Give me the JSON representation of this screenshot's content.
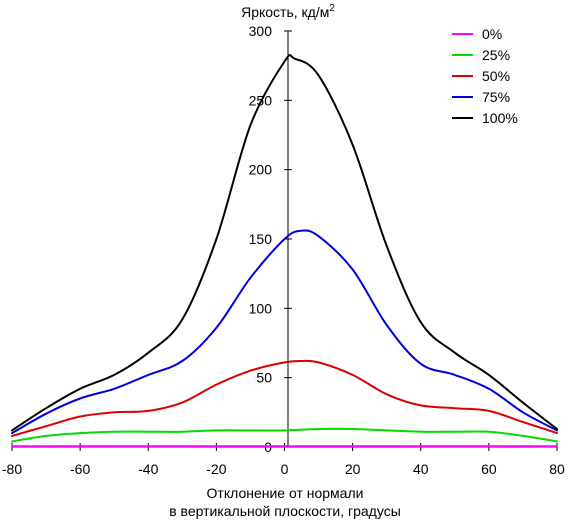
{
  "chart_data": {
    "type": "line",
    "title": "",
    "ylabel_main": "Яркость, кд/м",
    "ylabel_sup": "2",
    "xlabel_line1": "Отклонение от нормали",
    "xlabel_line2": "в вертикальной плоскости, градусы",
    "xlim": [
      -80,
      80
    ],
    "ylim": [
      0,
      300
    ],
    "xticks": [
      "-80",
      "-60",
      "-40",
      "-20",
      "0",
      "20",
      "40",
      "60",
      "80"
    ],
    "yticks": [
      "0",
      "50",
      "100",
      "150",
      "200",
      "250",
      "300"
    ],
    "legend_position": "top-right",
    "series": [
      {
        "name": "0%",
        "color": "#ff00ff",
        "x": [
          -80,
          -70,
          -60,
          -50,
          -40,
          -30,
          -20,
          -10,
          0,
          10,
          20,
          30,
          40,
          50,
          60,
          70,
          80
        ],
        "y": [
          0.5,
          0.5,
          0.5,
          0.5,
          0.5,
          0.5,
          0.5,
          0.5,
          0.5,
          0.5,
          0.5,
          0.5,
          0.5,
          0.5,
          0.5,
          0.5,
          0.5
        ]
      },
      {
        "name": "25%",
        "color": "#00dd00",
        "x": [
          -80,
          -70,
          -60,
          -50,
          -40,
          -30,
          -20,
          -10,
          0,
          10,
          20,
          30,
          40,
          50,
          60,
          70,
          80
        ],
        "y": [
          4,
          8,
          10,
          11,
          11,
          11,
          12,
          12,
          12,
          13,
          13,
          12,
          11,
          11,
          11,
          8,
          4
        ]
      },
      {
        "name": "50%",
        "color": "#dd0000",
        "x": [
          -80,
          -70,
          -60,
          -50,
          -40,
          -30,
          -20,
          -10,
          0,
          5,
          10,
          20,
          30,
          40,
          50,
          60,
          70,
          80
        ],
        "y": [
          8,
          15,
          22,
          25,
          26,
          32,
          45,
          55,
          61,
          62,
          61,
          52,
          38,
          30,
          28,
          26,
          18,
          10
        ]
      },
      {
        "name": "75%",
        "color": "#0000dd",
        "x": [
          -80,
          -70,
          -60,
          -50,
          -40,
          -30,
          -20,
          -10,
          0,
          5,
          10,
          20,
          30,
          40,
          50,
          60,
          70,
          80
        ],
        "y": [
          10,
          24,
          35,
          42,
          52,
          62,
          86,
          122,
          150,
          156,
          152,
          128,
          88,
          60,
          52,
          42,
          25,
          12
        ]
      },
      {
        "name": "100%",
        "color": "#000000",
        "x": [
          -80,
          -70,
          -60,
          -50,
          -40,
          -30,
          -20,
          -10,
          0,
          3,
          10,
          20,
          30,
          40,
          50,
          60,
          70,
          80
        ],
        "y": [
          12,
          28,
          42,
          52,
          68,
          92,
          150,
          232,
          278,
          280,
          268,
          218,
          145,
          90,
          68,
          52,
          32,
          13
        ]
      }
    ]
  }
}
